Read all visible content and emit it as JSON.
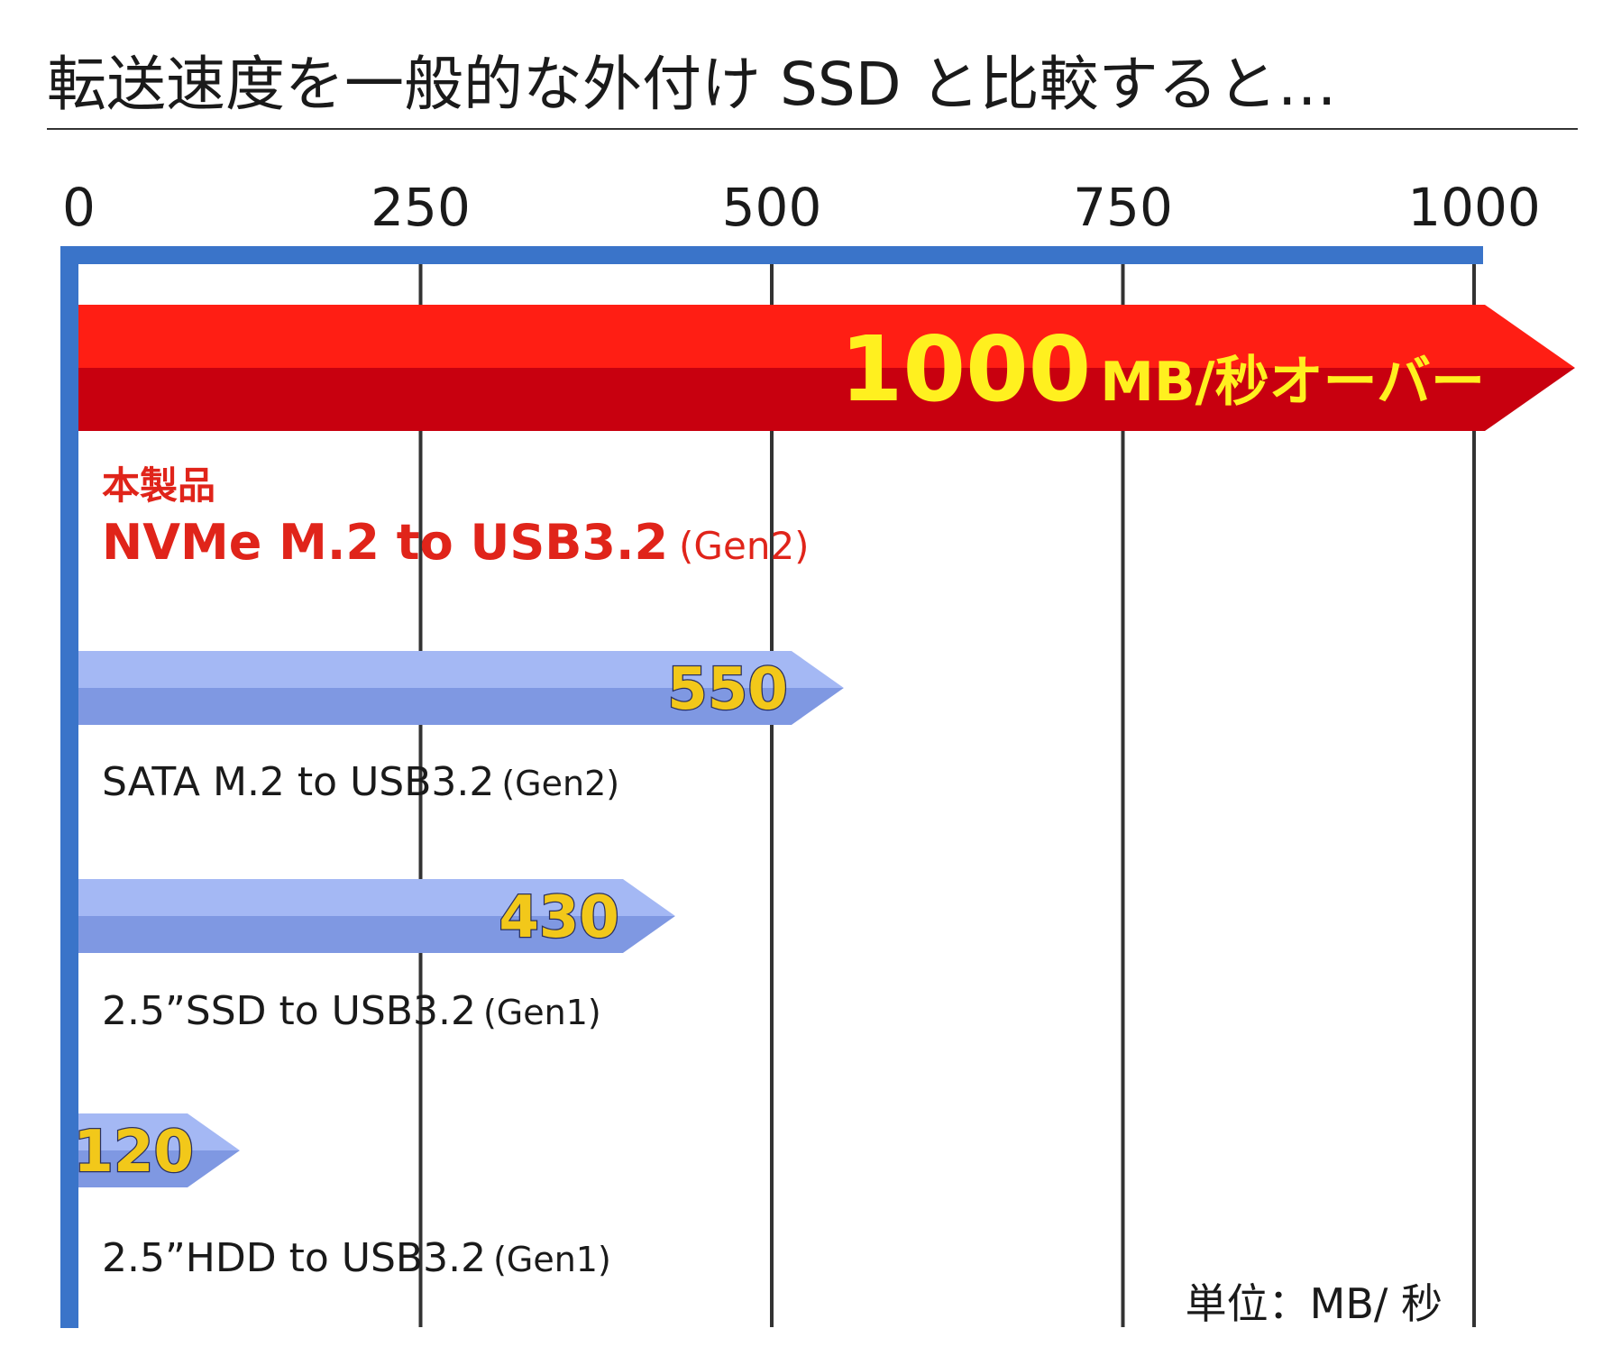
{
  "title": "転送速度を一般的な外付け SSD と比較すると…",
  "unit_note": "単位：MB/ 秒",
  "colors": {
    "axis_blue": "#3a74c9",
    "highlight_red": "#ff1e14",
    "highlight_red_dark": "#c8000f",
    "highlight_text": "#fff01f",
    "product_label_red": "#e0241a",
    "bar_blue_light": "#a4b8f4",
    "bar_blue_dark": "#7f98e2",
    "value_yellow": "#f2c81a"
  },
  "chart_data": {
    "type": "bar",
    "orientation": "horizontal",
    "title": "転送速度を一般的な外付け SSD と比較すると…",
    "xlim": [
      0,
      1000
    ],
    "xticks": [
      "0",
      "250",
      "500",
      "750",
      "1000"
    ],
    "unit": "単位：MB/ 秒",
    "grid": true,
    "highlight": {
      "value_label": "1000",
      "unit_label": "MB/秒オーバー",
      "tag": "本製品",
      "name": "NVMe M.2 to USB3.2",
      "sub": "(Gen2)",
      "value": 1000
    },
    "bars": [
      {
        "value": 550,
        "value_label": "550",
        "name": "SATA M.2 to USB3.2",
        "sub": "(Gen2)"
      },
      {
        "value": 430,
        "value_label": "430",
        "name": "2.5”SSD to USB3.2",
        "sub": "(Gen1)"
      },
      {
        "value": 120,
        "value_label": "120",
        "name": "2.5”HDD to USB3.2",
        "sub": "(Gen1)"
      }
    ]
  }
}
